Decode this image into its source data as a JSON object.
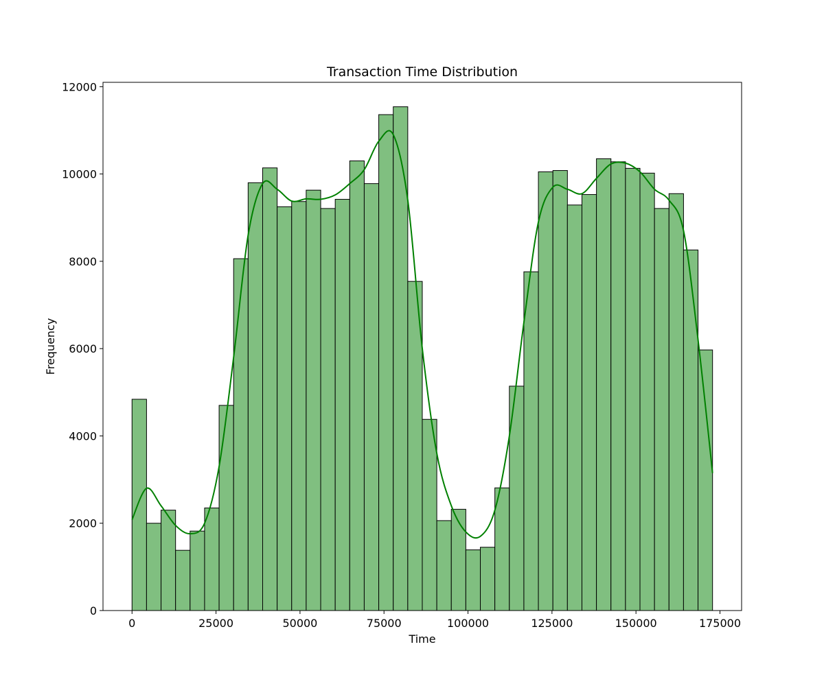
{
  "chart_data": {
    "type": "histogram",
    "title": "Transaction Time Distribution",
    "xlabel": "Time",
    "ylabel": "Frequency",
    "xlim": [
      -8640,
      181440
    ],
    "ylim": [
      0,
      12100
    ],
    "x_ticks": [
      0,
      25000,
      50000,
      75000,
      100000,
      125000,
      150000,
      175000
    ],
    "y_ticks": [
      0,
      2000,
      4000,
      6000,
      8000,
      10000,
      12000
    ],
    "bin_start": 0,
    "bin_end": 172792,
    "bin_count": 40,
    "values": [
      4840,
      2000,
      2300,
      1380,
      1820,
      2350,
      4700,
      8060,
      9800,
      10140,
      9250,
      9370,
      9630,
      9210,
      9420,
      10300,
      9780,
      11360,
      11540,
      7540,
      4380,
      2060,
      2320,
      1390,
      1450,
      2810,
      5140,
      7760,
      10050,
      10080,
      9290,
      9530,
      10350,
      10280,
      10130,
      10020,
      9210,
      9550,
      8260,
      5970
    ],
    "kde": {
      "x": [
        0,
        4320,
        8640,
        12960,
        17280,
        21600,
        25920,
        30240,
        34560,
        38880,
        43200,
        47520,
        51840,
        56160,
        60480,
        64800,
        69120,
        73440,
        77760,
        82080,
        86400,
        90720,
        95040,
        99360,
        103680,
        108000,
        112320,
        116640,
        120960,
        125280,
        129600,
        133920,
        138240,
        142560,
        146880,
        151200,
        155520,
        159840,
        164160,
        168480,
        172792
      ],
      "y": [
        2080,
        2800,
        2400,
        1950,
        1760,
        2000,
        3300,
        5800,
        8600,
        9780,
        9650,
        9380,
        9430,
        9420,
        9520,
        9780,
        10100,
        10750,
        10900,
        9400,
        6000,
        3600,
        2400,
        1800,
        1700,
        2300,
        4000,
        6600,
        8900,
        9700,
        9650,
        9550,
        9900,
        10230,
        10250,
        10050,
        9650,
        9400,
        8700,
        6200,
        3150
      ]
    },
    "bar_color": "#80bf80",
    "bar_edge_color": "#000000",
    "kde_color": "#008000",
    "grid": false,
    "legend": "none"
  }
}
